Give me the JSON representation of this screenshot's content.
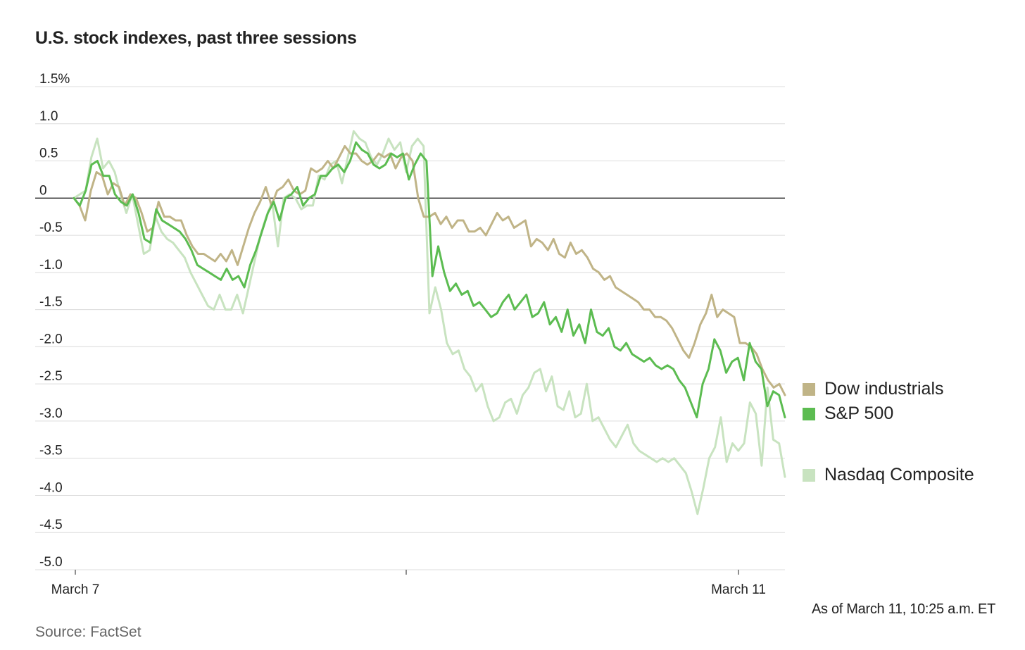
{
  "title": "U.S. stock indexes, past three sessions",
  "as_of": "As of March 11, 10:25 a.m. ET",
  "source": "Source: FactSet",
  "chart_data": {
    "type": "line",
    "ylim": [
      -5.0,
      1.5
    ],
    "y_ticks": [
      1.5,
      1.0,
      0.5,
      0,
      -0.5,
      -1.0,
      -1.5,
      -2.0,
      -2.5,
      -3.0,
      -3.5,
      -4.0,
      -4.5,
      -5.0
    ],
    "y_tick_labels": [
      "1.5%",
      "1.0",
      "0.5",
      "0",
      "-0.5",
      "-1.0",
      "-1.5",
      "-2.0",
      "-2.5",
      "-3.0",
      "-3.5",
      "-4.0",
      "-4.5",
      "-5.0"
    ],
    "x_tick_labels": [
      "March 7",
      "",
      "March 11"
    ],
    "grid": true,
    "legend_position": "right",
    "series": [
      {
        "name": "Dow industrials",
        "color": "#c0b487",
        "values": [
          0.0,
          -0.1,
          -0.3,
          0.1,
          0.35,
          0.3,
          0.05,
          0.2,
          0.15,
          -0.1,
          0.05,
          0.0,
          -0.2,
          -0.45,
          -0.4,
          -0.05,
          -0.25,
          -0.25,
          -0.3,
          -0.3,
          -0.5,
          -0.65,
          -0.75,
          -0.75,
          -0.8,
          -0.85,
          -0.75,
          -0.85,
          -0.7,
          -0.9,
          -0.65,
          -0.4,
          -0.2,
          -0.05,
          0.15,
          -0.1,
          0.1,
          0.15,
          0.25,
          0.1,
          0.05,
          0.1,
          0.4,
          0.35,
          0.4,
          0.5,
          0.4,
          0.55,
          0.7,
          0.6,
          0.6,
          0.5,
          0.45,
          0.5,
          0.6,
          0.55,
          0.6,
          0.4,
          0.55,
          0.6,
          0.5,
          0.0,
          -0.25,
          -0.25,
          -0.2,
          -0.35,
          -0.25,
          -0.4,
          -0.3,
          -0.3,
          -0.45,
          -0.45,
          -0.4,
          -0.5,
          -0.35,
          -0.2,
          -0.3,
          -0.25,
          -0.4,
          -0.35,
          -0.3,
          -0.65,
          -0.55,
          -0.6,
          -0.7,
          -0.55,
          -0.75,
          -0.8,
          -0.6,
          -0.75,
          -0.7,
          -0.8,
          -0.95,
          -1.0,
          -1.1,
          -1.05,
          -1.2,
          -1.25,
          -1.3,
          -1.35,
          -1.4,
          -1.5,
          -1.5,
          -1.6,
          -1.6,
          -1.65,
          -1.75,
          -1.9,
          -2.05,
          -2.15,
          -1.95,
          -1.7,
          -1.55,
          -1.3,
          -1.6,
          -1.5,
          -1.55,
          -1.6,
          -1.95,
          -1.95,
          -2.0,
          -2.1,
          -2.3,
          -2.45,
          -2.55,
          -2.5,
          -2.65
        ]
      },
      {
        "name": "S&P 500",
        "color": "#5cbc51",
        "values": [
          0.0,
          -0.1,
          0.1,
          0.45,
          0.5,
          0.3,
          0.3,
          0.05,
          -0.05,
          -0.1,
          0.05,
          -0.2,
          -0.55,
          -0.6,
          -0.15,
          -0.3,
          -0.35,
          -0.4,
          -0.45,
          -0.55,
          -0.7,
          -0.9,
          -0.95,
          -1.0,
          -1.05,
          -1.1,
          -0.95,
          -1.1,
          -1.05,
          -1.2,
          -0.9,
          -0.7,
          -0.45,
          -0.2,
          -0.05,
          -0.3,
          0.0,
          0.05,
          0.15,
          -0.1,
          0.0,
          0.05,
          0.3,
          0.3,
          0.4,
          0.45,
          0.35,
          0.5,
          0.75,
          0.65,
          0.6,
          0.45,
          0.4,
          0.45,
          0.6,
          0.55,
          0.6,
          0.25,
          0.45,
          0.6,
          0.5,
          -1.05,
          -0.65,
          -1.0,
          -1.25,
          -1.15,
          -1.3,
          -1.25,
          -1.45,
          -1.4,
          -1.5,
          -1.6,
          -1.55,
          -1.4,
          -1.3,
          -1.5,
          -1.4,
          -1.3,
          -1.6,
          -1.55,
          -1.4,
          -1.7,
          -1.6,
          -1.8,
          -1.5,
          -1.85,
          -1.7,
          -1.95,
          -1.5,
          -1.8,
          -1.85,
          -1.75,
          -2.0,
          -2.05,
          -1.95,
          -2.1,
          -2.15,
          -2.2,
          -2.15,
          -2.25,
          -2.3,
          -2.25,
          -2.3,
          -2.45,
          -2.55,
          -2.75,
          -2.95,
          -2.5,
          -2.3,
          -1.9,
          -2.05,
          -2.35,
          -2.2,
          -2.15,
          -2.45,
          -1.95,
          -2.2,
          -2.3,
          -2.8,
          -2.6,
          -2.65,
          -2.95
        ]
      },
      {
        "name": "Nasdaq Composite",
        "color": "#c8e3c0",
        "values": [
          0.0,
          0.05,
          0.1,
          0.55,
          0.8,
          0.4,
          0.5,
          0.35,
          0.05,
          -0.2,
          0.05,
          -0.35,
          -0.75,
          -0.7,
          -0.25,
          -0.45,
          -0.55,
          -0.6,
          -0.7,
          -0.8,
          -1.0,
          -1.15,
          -1.3,
          -1.45,
          -1.5,
          -1.3,
          -1.5,
          -1.5,
          -1.3,
          -1.55,
          -1.2,
          -0.85,
          -0.5,
          -0.25,
          -0.05,
          -0.65,
          0.0,
          0.05,
          0.0,
          -0.15,
          -0.1,
          -0.1,
          0.3,
          0.25,
          0.45,
          0.5,
          0.2,
          0.55,
          0.9,
          0.8,
          0.75,
          0.55,
          0.45,
          0.6,
          0.8,
          0.65,
          0.75,
          0.35,
          0.7,
          0.8,
          0.7,
          -1.55,
          -1.2,
          -1.5,
          -1.95,
          -2.1,
          -2.05,
          -2.3,
          -2.4,
          -2.6,
          -2.5,
          -2.8,
          -3.0,
          -2.95,
          -2.75,
          -2.7,
          -2.9,
          -2.65,
          -2.55,
          -2.35,
          -2.3,
          -2.6,
          -2.4,
          -2.8,
          -2.85,
          -2.6,
          -2.95,
          -2.9,
          -2.5,
          -3.0,
          -2.95,
          -3.1,
          -3.25,
          -3.35,
          -3.2,
          -3.05,
          -3.3,
          -3.4,
          -3.45,
          -3.5,
          -3.55,
          -3.5,
          -3.55,
          -3.5,
          -3.6,
          -3.7,
          -3.95,
          -4.25,
          -3.9,
          -3.5,
          -3.35,
          -2.95,
          -3.55,
          -3.3,
          -3.4,
          -3.3,
          -2.75,
          -2.9,
          -3.6,
          -2.55,
          -3.25,
          -3.3,
          -3.75
        ]
      }
    ]
  }
}
